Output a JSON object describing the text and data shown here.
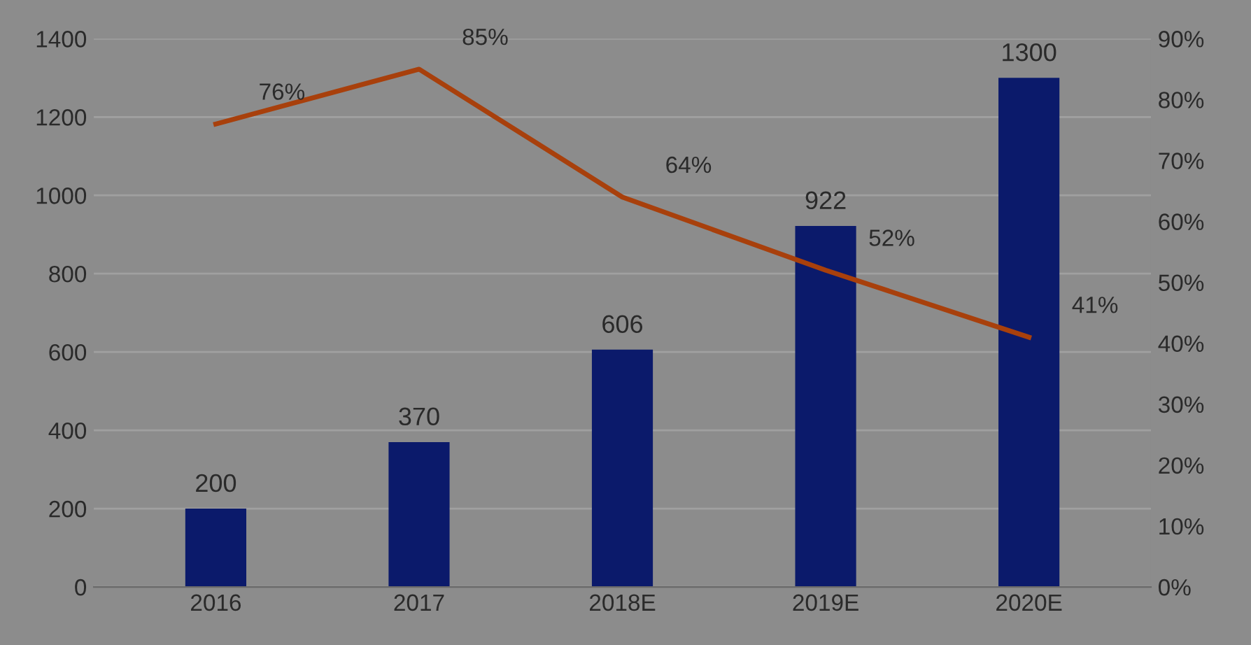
{
  "chart_data": {
    "type": "bar",
    "categories": [
      "2016",
      "2017",
      "2018E",
      "2019E",
      "2020E"
    ],
    "series": [
      {
        "color": "#0b1a6b",
        "values": [
          200,
          370,
          606,
          922,
          1300
        ],
        "value_labels": [
          "200",
          "370",
          "606",
          "922",
          "1300"
        ]
      },
      {
        "type": "line",
        "axis": "y2",
        "color": "#a8400c",
        "values": [
          76,
          85,
          64,
          52,
          41
        ],
        "value_labels": [
          "76%",
          "85%",
          "64%",
          "52%",
          "41%"
        ]
      }
    ],
    "ylim": [
      0,
      1400
    ],
    "yticks": [
      0,
      200,
      400,
      600,
      800,
      1000,
      1200,
      1400
    ],
    "y2lim": [
      0,
      90
    ],
    "y2ticks": [
      {
        "value": 0,
        "label": "0%"
      },
      {
        "value": 10,
        "label": "10%"
      },
      {
        "value": 20,
        "label": "20%"
      },
      {
        "value": 30,
        "label": "30%"
      },
      {
        "value": 40,
        "label": "40%"
      },
      {
        "value": 50,
        "label": "50%"
      },
      {
        "value": 60,
        "label": "60%"
      },
      {
        "value": 70,
        "label": "70%"
      },
      {
        "value": 80,
        "label": "80%"
      },
      {
        "value": 90,
        "label": "90%"
      }
    ],
    "grid": "y",
    "marker": "none",
    "line_style": "solid"
  }
}
